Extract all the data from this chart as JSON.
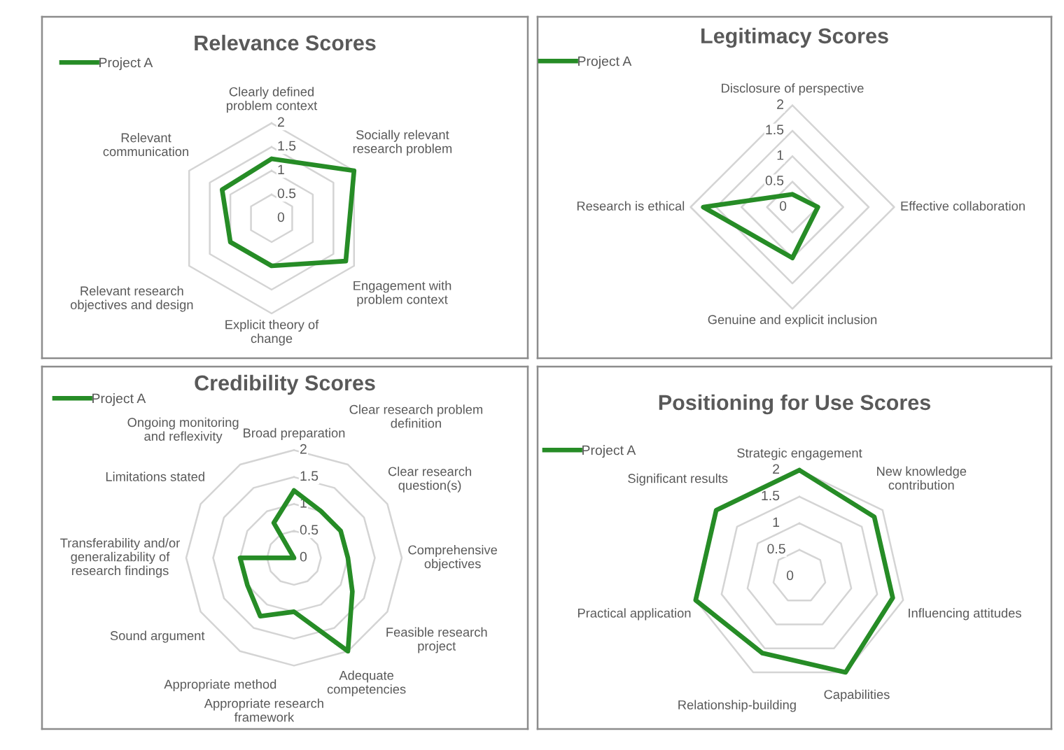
{
  "chart_data": [
    {
      "type": "radar",
      "title": "Relevance Scores",
      "categories": [
        "Clearly defined\nproblem context",
        "Socially relevant\nresearch problem",
        "Engagement with\nproblem context",
        "Explicit theory of\nchange",
        "Relevant research\nobjectives and design",
        "Relevant\ncommunication"
      ],
      "series": [
        {
          "name": "Project A",
          "color": "#268c26",
          "values": [
            1.25,
            2,
            1.8,
            1,
            1,
            1.2
          ]
        }
      ],
      "ylim": [
        0,
        2
      ],
      "yticks": [
        0,
        0.5,
        1,
        1.5,
        2
      ],
      "grid": true,
      "legend": "top left"
    },
    {
      "type": "radar",
      "title": "Legitimacy Scores",
      "categories": [
        "Disclosure of perspective",
        "Effective collaboration",
        "Genuine and explicit inclusion",
        "Research is ethical"
      ],
      "series": [
        {
          "name": "Project A",
          "color": "#268c26",
          "values": [
            0.25,
            0.5,
            1,
            1.75
          ]
        }
      ],
      "ylim": [
        0,
        2
      ],
      "yticks": [
        0,
        0.5,
        1,
        1.5,
        2
      ],
      "grid": true,
      "legend": "top left"
    },
    {
      "type": "radar",
      "title": "Credibility Scores",
      "categories": [
        "Broad preparation",
        "Clear research problem\ndefinition",
        "Clear research\nquestion(s)",
        "Comprehensive\nobjectives",
        "Feasible research\nproject",
        "Adequate\ncompetencies",
        "Appropriate research\nframework",
        "Appropriate method",
        "Sound argument",
        "Transferability and/or\ngeneralizability of\nresearch findings",
        "Limitations stated",
        "Ongoing monitoring\nand reflexivity"
      ],
      "series": [
        {
          "name": "Project A",
          "color": "#268c26",
          "values": [
            1.25,
            1,
            1,
            1,
            1.25,
            2,
            1,
            1.25,
            1,
            1,
            0,
            0.75
          ]
        }
      ],
      "ylim": [
        0,
        2
      ],
      "yticks": [
        0,
        0.5,
        1,
        1.5,
        2
      ],
      "grid": true,
      "legend": "top left"
    },
    {
      "type": "radar",
      "title": "Positioning for Use Scores",
      "categories": [
        "Strategic engagement",
        "New knowledge\ncontribution",
        "Influencing attitudes",
        "Capabilities",
        "Relationship-building",
        "Practical application",
        "Significant results"
      ],
      "series": [
        {
          "name": "Project A",
          "color": "#268c26",
          "values": [
            2,
            1.8,
            1.8,
            2,
            1.6,
            2,
            2
          ]
        }
      ],
      "ylim": [
        0,
        2
      ],
      "yticks": [
        0,
        0.5,
        1,
        1.5,
        2
      ],
      "grid": true,
      "legend": "top left"
    }
  ]
}
